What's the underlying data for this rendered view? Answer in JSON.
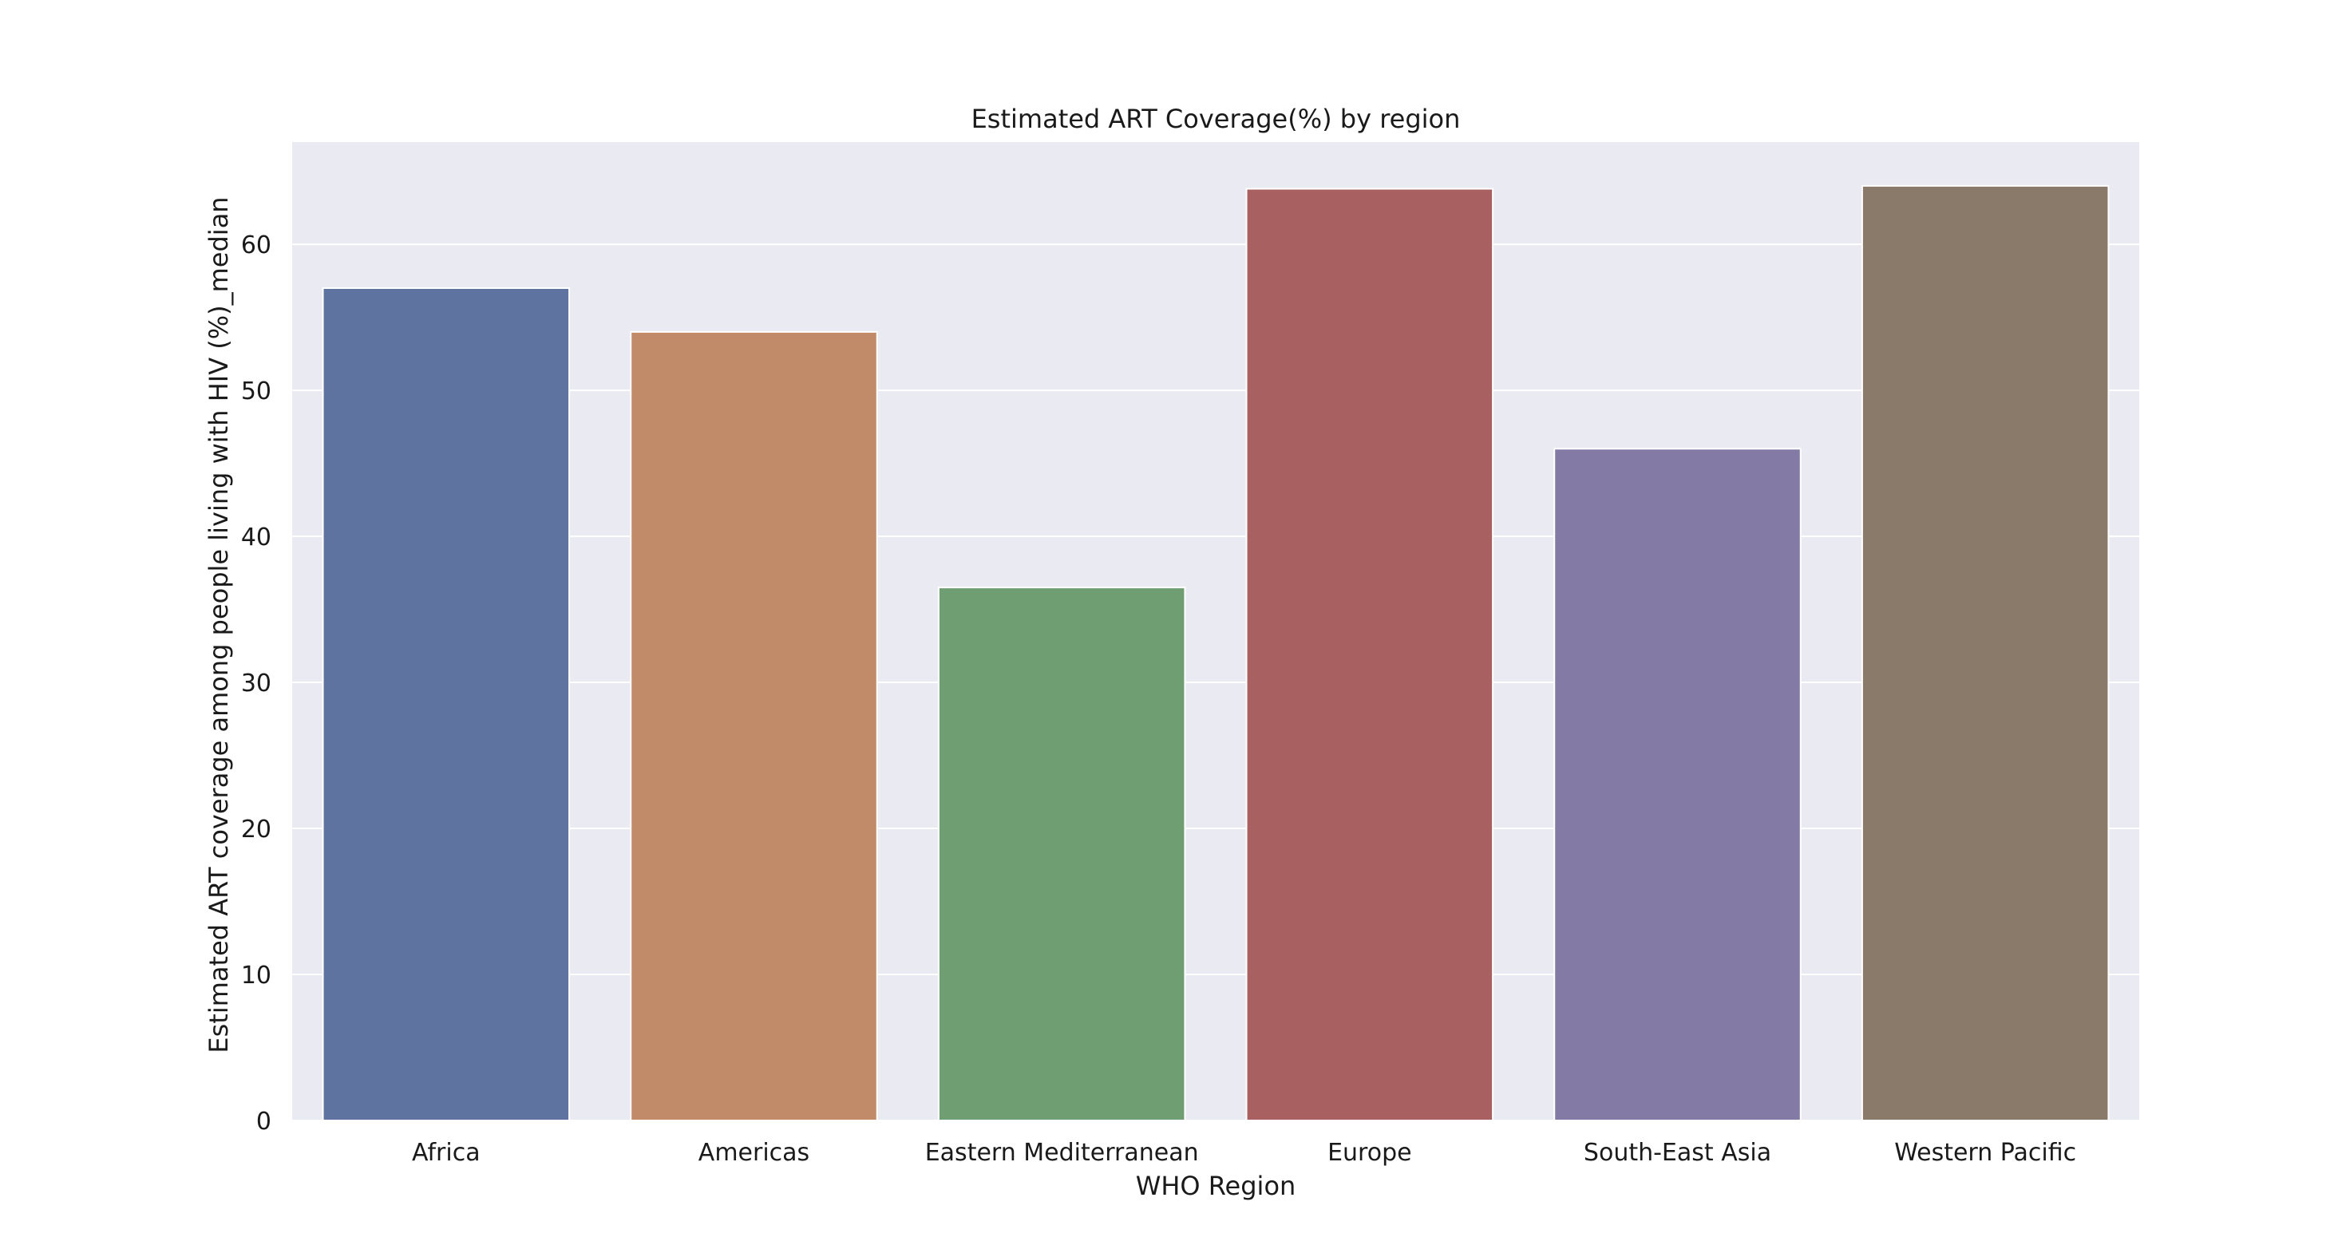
{
  "chart_data": {
    "type": "bar",
    "title": "Estimated ART Coverage(%) by region",
    "xlabel": "WHO Region",
    "ylabel": "Estimated ART coverage among people living with HIV (%)_median",
    "categories": [
      "Africa",
      "Americas",
      "Eastern Mediterranean",
      "Europe",
      "South-East Asia",
      "Western Pacific"
    ],
    "values": [
      57,
      54,
      36.5,
      63.8,
      46,
      64
    ],
    "colors": [
      "#5f73a0",
      "#c18b69",
      "#6e9e71",
      "#a86061",
      "#837aa6",
      "#8a7a6a"
    ],
    "ylim": [
      0,
      67
    ],
    "yticks": [
      0,
      10,
      20,
      30,
      40,
      50,
      60
    ],
    "grid": true,
    "background": "#eaeaf2",
    "legend": false
  }
}
